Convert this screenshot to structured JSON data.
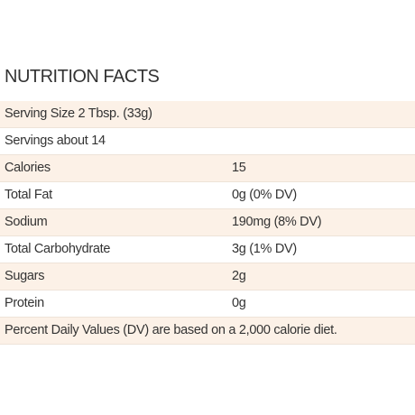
{
  "header": {
    "title": "NUTRITION FACTS"
  },
  "table": {
    "rows": [
      [
        "Serving Size 2 Tbsp. (33g)"
      ],
      [
        "Servings about 14"
      ],
      [
        "Calories",
        "15"
      ],
      [
        "Total Fat",
        "0g (0% DV)"
      ],
      [
        "Sodium",
        "190mg (8% DV)"
      ],
      [
        "Total Carbohydrate",
        "3g (1% DV)"
      ],
      [
        "Sugars",
        "2g"
      ],
      [
        "Protein",
        "0g"
      ],
      [
        "Percent Daily Values (DV) are based on a 2,000 calorie diet."
      ]
    ]
  }
}
